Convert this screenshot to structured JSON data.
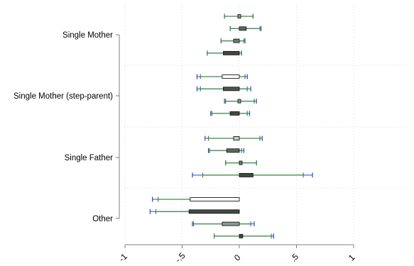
{
  "chart_data": {
    "type": "coefficient-plot",
    "title": "",
    "xlabel": "",
    "ylabel": "",
    "xlim": [
      -1,
      1
    ],
    "x_ticks": [
      {
        "value": -1,
        "label": "-1"
      },
      {
        "value": -0.5,
        "label": "-.5"
      },
      {
        "value": 0,
        "label": "0"
      },
      {
        "value": 0.5,
        "label": ".5"
      },
      {
        "value": 1,
        "label": "1"
      }
    ],
    "grid": true,
    "legend": "none",
    "groups": [
      {
        "label": "Single Mother",
        "rows": [
          {
            "box": [
              0.0,
              0.0
            ],
            "box_fill": "#8a9a8e",
            "ci90": [
              -0.13,
              0.12
            ],
            "ci95": [
              -0.13,
              0.12
            ]
          },
          {
            "box": [
              0.0,
              0.06
            ],
            "box_fill": "#5c6b60",
            "ci90": [
              -0.08,
              0.18
            ],
            "ci95": [
              -0.08,
              0.19
            ]
          },
          {
            "box": [
              -0.05,
              0.0
            ],
            "box_fill": "#6f7d72",
            "ci90": [
              -0.16,
              0.04
            ],
            "ci95": [
              -0.16,
              0.05
            ]
          },
          {
            "box": [
              -0.14,
              0.0
            ],
            "box_fill": "#3f4a42",
            "ci90": [
              -0.28,
              0.02
            ],
            "ci95": [
              -0.28,
              0.02
            ]
          }
        ]
      },
      {
        "label": "Single Mother (step-parent)",
        "rows": [
          {
            "box": [
              -0.15,
              0.0
            ],
            "box_fill": "#ffffff",
            "ci90": [
              -0.34,
              0.05
            ],
            "ci95": [
              -0.37,
              0.07
            ]
          },
          {
            "box": [
              -0.14,
              0.0
            ],
            "box_fill": "#4a564d",
            "ci90": [
              -0.34,
              0.07
            ],
            "ci95": [
              -0.37,
              0.1
            ]
          },
          {
            "box": [
              0.0,
              0.0
            ],
            "box_fill": "#8a9a8e",
            "ci90": [
              -0.12,
              0.13
            ],
            "ci95": [
              -0.13,
              0.15
            ]
          },
          {
            "box": [
              -0.08,
              0.0
            ],
            "box_fill": "#3f4a42",
            "ci90": [
              -0.24,
              0.07
            ],
            "ci95": [
              -0.25,
              0.09
            ]
          }
        ]
      },
      {
        "label": "Single Father",
        "rows": [
          {
            "box": [
              -0.05,
              0.0
            ],
            "box_fill": "#c4cdc6",
            "ci90": [
              -0.27,
              0.18
            ],
            "ci95": [
              -0.3,
              0.2
            ]
          },
          {
            "box": [
              -0.11,
              0.0
            ],
            "box_fill": "#5c6b60",
            "ci90": [
              -0.26,
              0.02
            ],
            "ci95": [
              -0.27,
              0.04
            ]
          },
          {
            "box": [
              0.0,
              0.01
            ],
            "box_fill": "#6f7d72",
            "ci90": [
              -0.12,
              0.15
            ],
            "ci95": [
              -0.12,
              0.15
            ]
          },
          {
            "box": [
              0.0,
              0.12
            ],
            "box_fill": "#3f4a42",
            "ci90": [
              -0.32,
              0.56
            ],
            "ci95": [
              -0.41,
              0.64
            ]
          }
        ]
      },
      {
        "label": "Other",
        "rows": [
          {
            "box": [
              -0.43,
              0.0
            ],
            "box_fill": "#ffffff",
            "ci90": [
              -0.71,
              0.0
            ],
            "ci95": [
              -0.76,
              0.0
            ]
          },
          {
            "box": [
              -0.44,
              0.0
            ],
            "box_fill": "#3f4a42",
            "ci90": [
              -0.73,
              0.0
            ],
            "ci95": [
              -0.78,
              0.0
            ]
          },
          {
            "box": [
              -0.15,
              0.0
            ],
            "box_fill": "#8a9a8e",
            "ci90": [
              -0.4,
              0.1
            ],
            "ci95": [
              -0.41,
              0.13
            ]
          },
          {
            "box": [
              0.0,
              0.03
            ],
            "box_fill": "#3f4a42",
            "ci90": [
              -0.22,
              0.28
            ],
            "ci95": [
              -0.22,
              0.3
            ]
          }
        ]
      }
    ]
  },
  "colors": {
    "ci90": "#3c8a46",
    "ci95": "#3146c8",
    "box_stroke": "#1a1a1a",
    "grid": "#d9d9d9",
    "axis": "#7f7f7f"
  }
}
